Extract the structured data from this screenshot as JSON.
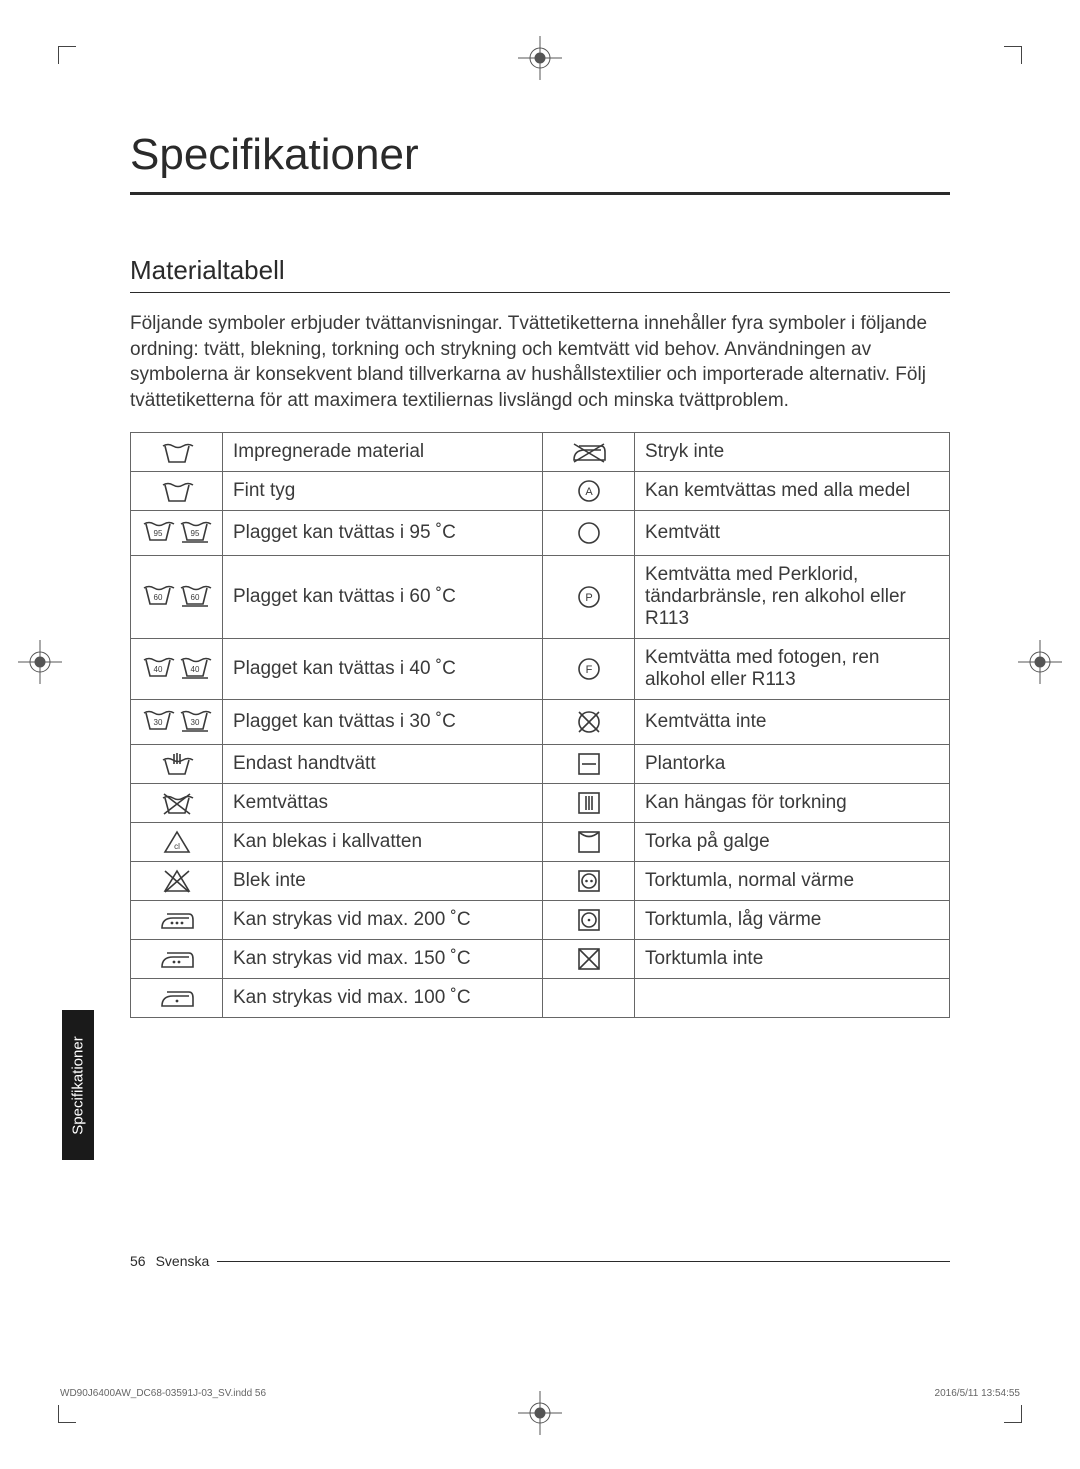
{
  "title": "Specifikationer",
  "subtitle": "Materialtabell",
  "intro": "Följande symboler erbjuder tvättanvisningar. Tvättetiketterna innehåller fyra symboler i följande ordning: tvätt, blekning, torkning och strykning och kemtvätt vid behov. Användningen av symbolerna är konsekvent bland tillverkarna av hushållstextilier och importerade alternativ. Följ tvättetiketterna för att maximera textiliernas livslängd och minska tvättproblem.",
  "side_tab": "Specifikationer",
  "footer": {
    "page": "56",
    "lang": "Svenska"
  },
  "meta": {
    "left": "WD90J6400AW_DC68-03591J-03_SV.indd   56",
    "right": "2016/5/11   13:54:55"
  },
  "colors": {
    "text": "#3a3a3a",
    "border": "#666666",
    "rule": "#2a2a2a",
    "background": "#ffffff",
    "tab_bg": "#1a1a1a"
  },
  "icon_color": "#3a3a3a",
  "table": {
    "rows": [
      {
        "left_icon": "wash-basin",
        "left_text": "Impregnerade material",
        "right_icon": "iron-cross",
        "right_text": "Stryk inte"
      },
      {
        "left_icon": "wash-basin",
        "left_text": "Fint tyg",
        "right_icon": "circle-a",
        "right_text": "Kan kemtvättas med alla medel"
      },
      {
        "left_icon": "wash-95-pair",
        "left_text": "Plagget kan tvättas i 95 ˚C",
        "right_icon": "circle",
        "right_text": "Kemtvätt"
      },
      {
        "left_icon": "wash-60-pair",
        "left_text": "Plagget kan tvättas i 60 ˚C",
        "right_icon": "circle-p",
        "right_text": "Kemtvätta med Perklorid, tändarbränsle, ren alkohol eller R113"
      },
      {
        "left_icon": "wash-40-pair",
        "left_text": "Plagget kan tvättas i 40 ˚C",
        "right_icon": "circle-f",
        "right_text": "Kemtvätta med fotogen, ren alkohol eller R113"
      },
      {
        "left_icon": "wash-30-pair",
        "left_text": "Plagget kan tvättas i 30 ˚C",
        "right_icon": "circle-cross",
        "right_text": "Kemtvätta inte"
      },
      {
        "left_icon": "hand-wash",
        "left_text": "Endast handtvätt",
        "right_icon": "square-hline",
        "right_text": "Plantorka"
      },
      {
        "left_icon": "wash-cross",
        "left_text": "Kemtvättas",
        "right_icon": "square-vlines",
        "right_text": "Kan hängas för torkning"
      },
      {
        "left_icon": "triangle-cl",
        "left_text": "Kan blekas i kallvatten",
        "right_icon": "square-envelope",
        "right_text": "Torka på galge"
      },
      {
        "left_icon": "triangle-cross",
        "left_text": "Blek inte",
        "right_icon": "square-circle-2",
        "right_text": "Torktumla, normal värme"
      },
      {
        "left_icon": "iron-3",
        "left_text": "Kan strykas vid max. 200 ˚C",
        "right_icon": "square-circle-1",
        "right_text": "Torktumla, låg värme"
      },
      {
        "left_icon": "iron-2",
        "left_text": "Kan strykas vid max. 150 ˚C",
        "right_icon": "square-cross",
        "right_text": "Torktumla inte"
      },
      {
        "left_icon": "iron-1",
        "left_text": "Kan strykas vid max. 100 ˚C",
        "right_icon": "",
        "right_text": ""
      }
    ]
  }
}
